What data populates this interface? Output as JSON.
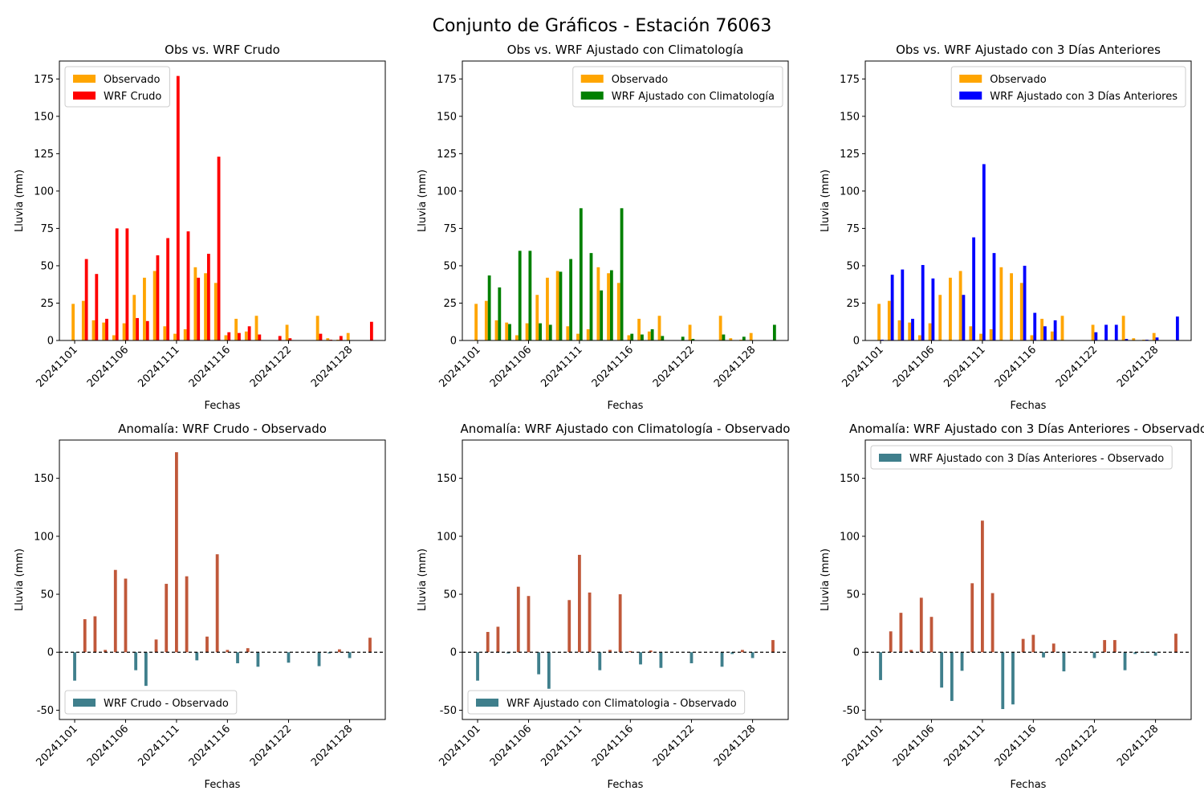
{
  "figure": {
    "suptitle": "Conjunto de Gráficos - Estación 76063"
  },
  "colors": {
    "observado": "#FFA500",
    "wrf_crudo": "#FF0000",
    "wrf_clim": "#008000",
    "wrf_3dias": "#0000FF",
    "anom_pos": "#C0583A",
    "anom_neg": "#3F7F8C"
  },
  "chart_data": [
    {
      "type": "bar",
      "title": "Obs vs. WRF Crudo",
      "xlabel": "Fechas",
      "ylabel": "Lluvia (mm)",
      "ylim": [
        0,
        187
      ],
      "yticks": [
        0,
        25,
        50,
        75,
        100,
        125,
        150,
        175
      ],
      "xticks": [
        "20241101",
        "20241106",
        "20241111",
        "20241116",
        "20241122",
        "20241128"
      ],
      "legend_position": "upper-left",
      "x": [
        "20241101",
        "20241102",
        "20241103",
        "20241104",
        "20241105",
        "20241106",
        "20241107",
        "20241108",
        "20241109",
        "20241110",
        "20241111",
        "20241112",
        "20241113",
        "20241114",
        "20241115",
        "20241116",
        "20241117",
        "20241118",
        "20241119",
        "20241121",
        "20241122",
        "20241125",
        "20241126",
        "20241127",
        "20241128",
        "20241130"
      ],
      "series": [
        {
          "name": "Observado",
          "color_key": "observado",
          "values": [
            24.5,
            26.5,
            13.5,
            12.0,
            3.5,
            11.5,
            30.5,
            42.0,
            46.5,
            9.5,
            4.5,
            7.5,
            49.0,
            45.0,
            38.5,
            3.5,
            14.5,
            6.0,
            16.5,
            0,
            10.5,
            16.5,
            1.5,
            0.5,
            5.0,
            0
          ]
        },
        {
          "name": "WRF Crudo",
          "color_key": "wrf_crudo",
          "values": [
            0,
            54.5,
            44.5,
            14.5,
            75.0,
            75.0,
            15.0,
            13.0,
            57.0,
            68.5,
            177.0,
            73.0,
            42.0,
            58.0,
            123.0,
            5.5,
            5.0,
            9.5,
            4.0,
            3.0,
            1.5,
            4.5,
            0.5,
            3.0,
            0,
            12.5
          ]
        }
      ]
    },
    {
      "type": "bar",
      "title": "Obs vs. WRF Ajustado con Climatología",
      "xlabel": "Fechas",
      "ylabel": "Lluvia (mm)",
      "ylim": [
        0,
        187
      ],
      "yticks": [
        0,
        25,
        50,
        75,
        100,
        125,
        150,
        175
      ],
      "xticks": [
        "20241101",
        "20241106",
        "20241111",
        "20241116",
        "20241122",
        "20241128"
      ],
      "legend_position": "upper-right",
      "x": [
        "20241101",
        "20241102",
        "20241103",
        "20241104",
        "20241105",
        "20241106",
        "20241107",
        "20241108",
        "20241109",
        "20241110",
        "20241111",
        "20241112",
        "20241113",
        "20241114",
        "20241115",
        "20241116",
        "20241117",
        "20241118",
        "20241119",
        "20241121",
        "20241122",
        "20241125",
        "20241126",
        "20241127",
        "20241128",
        "20241130"
      ],
      "series": [
        {
          "name": "Observado",
          "color_key": "observado",
          "values": [
            24.5,
            26.5,
            13.5,
            12.0,
            3.5,
            11.5,
            30.5,
            42.0,
            46.5,
            9.5,
            4.5,
            7.5,
            49.0,
            45.0,
            38.5,
            3.5,
            14.5,
            6.0,
            16.5,
            0,
            10.5,
            16.5,
            1.5,
            0.5,
            5.0,
            0
          ]
        },
        {
          "name": "WRF Ajustado con Climatología",
          "color_key": "wrf_clim",
          "values": [
            0,
            43.5,
            35.5,
            11.0,
            60.0,
            60.0,
            11.5,
            10.5,
            46.0,
            54.5,
            88.5,
            58.5,
            33.5,
            47.0,
            88.5,
            4.5,
            4.0,
            7.5,
            3.0,
            2.5,
            1.0,
            4.0,
            0,
            2.5,
            0,
            10.5
          ]
        }
      ]
    },
    {
      "type": "bar",
      "title": "Obs vs. WRF Ajustado con 3 Días Anteriores",
      "xlabel": "Fechas",
      "ylabel": "Lluvia (mm)",
      "ylim": [
        0,
        187
      ],
      "yticks": [
        0,
        25,
        50,
        75,
        100,
        125,
        150,
        175
      ],
      "xticks": [
        "20241101",
        "20241106",
        "20241111",
        "20241116",
        "20241122",
        "20241128"
      ],
      "legend_position": "upper-right",
      "x": [
        "20241101",
        "20241102",
        "20241103",
        "20241104",
        "20241105",
        "20241106",
        "20241107",
        "20241108",
        "20241109",
        "20241110",
        "20241111",
        "20241112",
        "20241113",
        "20241114",
        "20241115",
        "20241116",
        "20241117",
        "20241118",
        "20241119",
        "20241121",
        "20241122",
        "20241123",
        "20241124",
        "20241125",
        "20241126",
        "20241127",
        "20241128",
        "20241130"
      ],
      "series": [
        {
          "name": "Observado",
          "color_key": "observado",
          "values": [
            24.5,
            26.5,
            13.5,
            12.0,
            3.5,
            11.5,
            30.5,
            42.0,
            46.5,
            9.5,
            4.5,
            7.5,
            49.0,
            45.0,
            38.5,
            3.5,
            14.5,
            6.0,
            16.5,
            0,
            10.5,
            0,
            0,
            16.5,
            1.5,
            0.5,
            5.0,
            0
          ]
        },
        {
          "name": "WRF Ajustado con 3 Días Anteriores",
          "color_key": "wrf_3dias",
          "values": [
            0.5,
            44.0,
            47.5,
            14.5,
            50.5,
            41.5,
            0,
            0,
            30.5,
            69.0,
            118.0,
            58.5,
            0,
            0,
            50.0,
            18.5,
            9.5,
            13.5,
            0,
            0,
            5.5,
            10.5,
            10.5,
            1.0,
            0,
            0.5,
            2.0,
            16.0
          ]
        }
      ]
    },
    {
      "type": "bar",
      "title": "Anomalía: WRF Crudo - Observado",
      "xlabel": "Fechas",
      "ylabel": "Lluvia (mm)",
      "ylim": [
        -58,
        183
      ],
      "yticks": [
        -50,
        0,
        50,
        100,
        150
      ],
      "xticks": [
        "20241101",
        "20241106",
        "20241111",
        "20241116",
        "20241122",
        "20241128"
      ],
      "legend_position": "lower-left",
      "x": [
        "20241101",
        "20241102",
        "20241103",
        "20241104",
        "20241105",
        "20241106",
        "20241107",
        "20241108",
        "20241109",
        "20241110",
        "20241111",
        "20241112",
        "20241113",
        "20241114",
        "20241115",
        "20241116",
        "20241117",
        "20241118",
        "20241119",
        "20241121",
        "20241122",
        "20241125",
        "20241126",
        "20241127",
        "20241128",
        "20241130"
      ],
      "series": [
        {
          "name": "WRF Crudo - Observado",
          "color_key": "anom_neg",
          "values": [
            -24.5,
            28.5,
            31.0,
            2.0,
            71.0,
            63.5,
            -15.5,
            -29.0,
            11.0,
            59.0,
            172.5,
            65.5,
            -7.0,
            13.5,
            84.5,
            2.0,
            -9.5,
            3.5,
            -12.5,
            0,
            -9.0,
            -12.0,
            -1.0,
            2.5,
            -5.0,
            12.5
          ]
        }
      ]
    },
    {
      "type": "bar",
      "title": "Anomalía: WRF Ajustado con Climatología - Observado",
      "xlabel": "Fechas",
      "ylabel": "Lluvia (mm)",
      "ylim": [
        -58,
        183
      ],
      "yticks": [
        -50,
        0,
        50,
        100,
        150
      ],
      "xticks": [
        "20241101",
        "20241106",
        "20241111",
        "20241116",
        "20241122",
        "20241128"
      ],
      "legend_position": "lower-left",
      "x": [
        "20241101",
        "20241102",
        "20241103",
        "20241104",
        "20241105",
        "20241106",
        "20241107",
        "20241108",
        "20241109",
        "20241110",
        "20241111",
        "20241112",
        "20241113",
        "20241114",
        "20241115",
        "20241116",
        "20241117",
        "20241118",
        "20241119",
        "20241121",
        "20241122",
        "20241125",
        "20241126",
        "20241127",
        "20241128",
        "20241130"
      ],
      "series": [
        {
          "name": "WRF Ajustado con Climatologia - Observado",
          "color_key": "anom_neg",
          "values": [
            -24.5,
            17.5,
            22.0,
            -1.0,
            56.5,
            48.5,
            -19.0,
            -31.5,
            -0.5,
            45.0,
            84.0,
            51.5,
            -15.5,
            2.0,
            50.0,
            1.0,
            -10.5,
            1.5,
            -13.5,
            0,
            -9.5,
            -12.5,
            -1.5,
            2.0,
            -5.0,
            10.5
          ]
        }
      ]
    },
    {
      "type": "bar",
      "title": "Anomalía: WRF Ajustado con 3 Días Anteriores - Observado",
      "xlabel": "Fechas",
      "ylabel": "Lluvia (mm)",
      "ylim": [
        -58,
        183
      ],
      "yticks": [
        -50,
        0,
        50,
        100,
        150
      ],
      "xticks": [
        "20241101",
        "20241106",
        "20241111",
        "20241116",
        "20241122",
        "20241128"
      ],
      "legend_position": "upper-left",
      "x": [
        "20241101",
        "20241102",
        "20241103",
        "20241104",
        "20241105",
        "20241106",
        "20241107",
        "20241108",
        "20241109",
        "20241110",
        "20241111",
        "20241112",
        "20241113",
        "20241114",
        "20241115",
        "20241116",
        "20241117",
        "20241118",
        "20241119",
        "20241121",
        "20241122",
        "20241123",
        "20241124",
        "20241125",
        "20241126",
        "20241127",
        "20241128",
        "20241130"
      ],
      "series": [
        {
          "name": "WRF Ajustado con 3 Días Anteriores - Observado",
          "color_key": "anom_neg",
          "values": [
            -24.0,
            18.0,
            34.0,
            2.0,
            47.0,
            30.5,
            -30.5,
            -42.0,
            -16.0,
            59.5,
            113.5,
            51.0,
            -49.0,
            -45.0,
            11.5,
            15.0,
            -4.5,
            7.5,
            -16.5,
            0,
            -5.0,
            10.5,
            10.5,
            -15.5,
            -1.5,
            -0.5,
            -3.0,
            16.0
          ]
        }
      ]
    }
  ]
}
